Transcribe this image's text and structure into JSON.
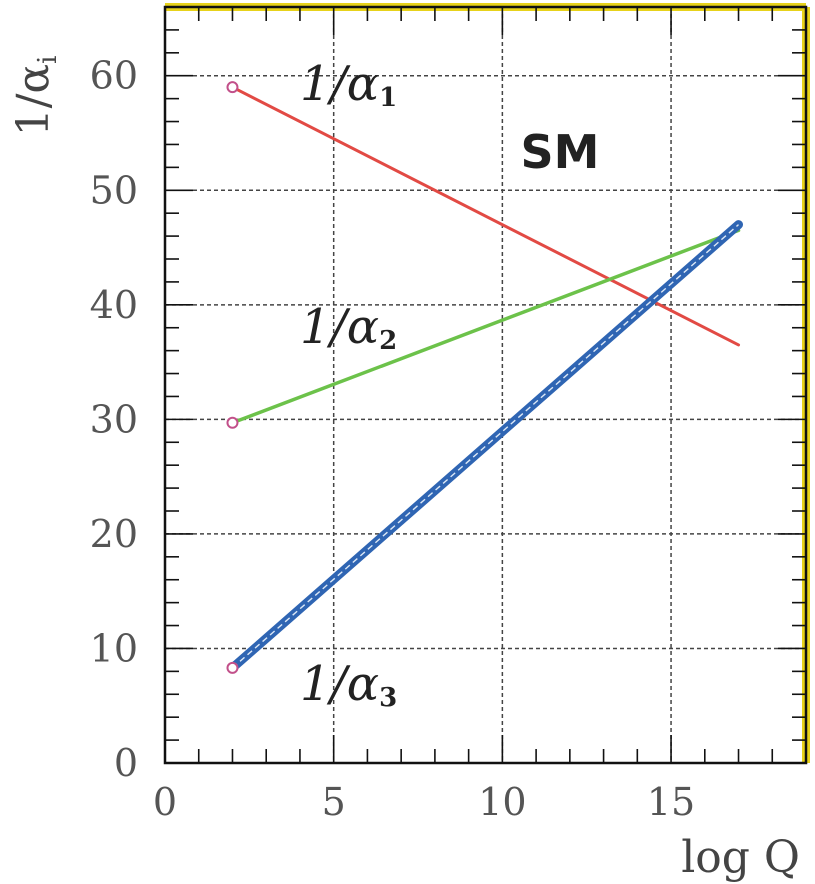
{
  "chart_data": {
    "type": "line",
    "xlabel": "log Q",
    "ylabel": "1/α",
    "ylabel_sub": "i",
    "xlim": [
      0,
      19
    ],
    "ylim": [
      0,
      66
    ],
    "x_ticks": [
      0,
      5,
      10,
      15
    ],
    "y_ticks": [
      0,
      10,
      20,
      30,
      40,
      50,
      60
    ],
    "grid": true,
    "annotation": "SM",
    "colors": {
      "frame": "#111111",
      "frame_accent": "#e7d21a",
      "grid": "#444444"
    },
    "series": [
      {
        "name": "1/α",
        "sub": "1",
        "color": "#e24a44",
        "x": [
          2,
          17
        ],
        "y": [
          59,
          36.5
        ]
      },
      {
        "name": "1/α",
        "sub": "2",
        "color": "#6cc24a",
        "x": [
          2,
          17
        ],
        "y": [
          29.7,
          46.5
        ]
      },
      {
        "name": "1/α",
        "sub": "3",
        "color": "#2f65b3",
        "x": [
          2,
          17
        ],
        "y": [
          8.3,
          47
        ]
      }
    ]
  }
}
